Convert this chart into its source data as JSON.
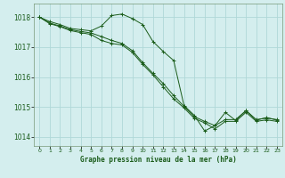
{
  "title": "Graphe pression niveau de la mer (hPa)",
  "background_color": "#d4eeee",
  "grid_color": "#b0d8d8",
  "line_color": "#1a5c1a",
  "xlim": [
    -0.5,
    23.5
  ],
  "ylim": [
    1013.7,
    1018.45
  ],
  "yticks": [
    1014,
    1015,
    1016,
    1017,
    1018
  ],
  "xticks": [
    0,
    1,
    2,
    3,
    4,
    5,
    6,
    7,
    8,
    9,
    10,
    11,
    12,
    13,
    14,
    15,
    16,
    17,
    18,
    19,
    20,
    21,
    22,
    23
  ],
  "series1_x": [
    0,
    1,
    2,
    3,
    4,
    5,
    6,
    7,
    8,
    9,
    10,
    11,
    12,
    13,
    14,
    15,
    16,
    17,
    18,
    19,
    20,
    21,
    22,
    23
  ],
  "series1_y": [
    1018.0,
    1017.85,
    1017.75,
    1017.62,
    1017.58,
    1017.54,
    1017.7,
    1018.05,
    1018.1,
    1017.95,
    1017.75,
    1017.18,
    1016.85,
    1016.55,
    1015.05,
    1014.72,
    1014.2,
    1014.38,
    1014.82,
    1014.55,
    1014.88,
    1014.56,
    1014.65,
    1014.56
  ],
  "series2_x": [
    0,
    1,
    2,
    3,
    4,
    5,
    6,
    7,
    8,
    9,
    10,
    11,
    12,
    13,
    14,
    15,
    16,
    17,
    18,
    19,
    20,
    21,
    22,
    23
  ],
  "series2_y": [
    1018.0,
    1017.8,
    1017.7,
    1017.58,
    1017.52,
    1017.47,
    1017.35,
    1017.22,
    1017.12,
    1016.88,
    1016.48,
    1016.12,
    1015.78,
    1015.38,
    1015.02,
    1014.68,
    1014.52,
    1014.38,
    1014.58,
    1014.58,
    1014.88,
    1014.58,
    1014.63,
    1014.58
  ],
  "series3_x": [
    0,
    1,
    2,
    3,
    4,
    5,
    6,
    7,
    8,
    9,
    10,
    11,
    12,
    13,
    14,
    15,
    16,
    17,
    18,
    19,
    20,
    21,
    22,
    23
  ],
  "series3_y": [
    1018.0,
    1017.78,
    1017.68,
    1017.55,
    1017.48,
    1017.42,
    1017.22,
    1017.12,
    1017.07,
    1016.82,
    1016.42,
    1016.07,
    1015.67,
    1015.27,
    1014.97,
    1014.62,
    1014.47,
    1014.27,
    1014.52,
    1014.52,
    1014.82,
    1014.52,
    1014.57,
    1014.52
  ]
}
